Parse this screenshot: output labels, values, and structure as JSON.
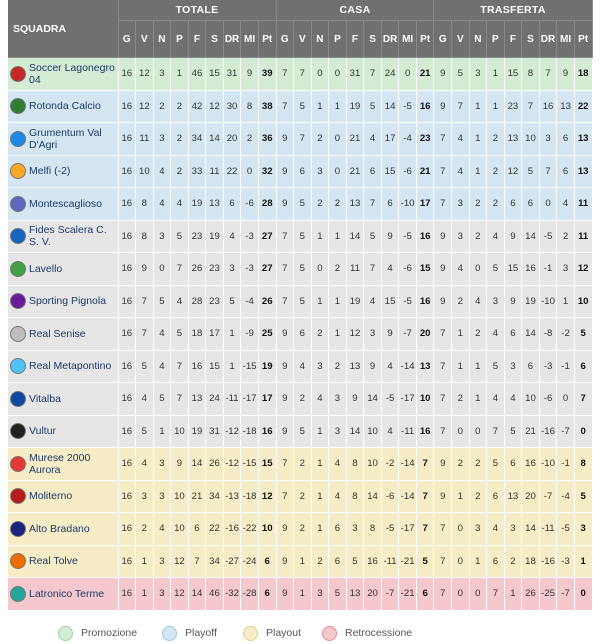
{
  "header": {
    "team_col": "SQUADRA",
    "groups": [
      "TOTALE",
      "CASA",
      "TRASFERTA"
    ],
    "sub_cols": [
      "G",
      "V",
      "N",
      "P",
      "F",
      "S",
      "DR",
      "MI",
      "Pt"
    ]
  },
  "colors": {
    "promozione": "#d4ecd4",
    "playoff": "#d4e6f2",
    "playout": "#f6ecc6",
    "retrocessione": "#f4c8cc"
  },
  "rows": [
    {
      "team": "Soccer Lagonegro 04",
      "zone": "promo",
      "logo": "#c62828",
      "tot": [
        "16",
        "12",
        "3",
        "1",
        "46",
        "15",
        "31",
        "9",
        "39"
      ],
      "casa": [
        "7",
        "7",
        "0",
        "0",
        "31",
        "7",
        "24",
        "0",
        "21"
      ],
      "tras": [
        "9",
        "5",
        "3",
        "1",
        "15",
        "8",
        "7",
        "9",
        "18"
      ]
    },
    {
      "team": "Rotonda Calcio",
      "zone": "playoff",
      "logo": "#2e7d32",
      "tot": [
        "16",
        "12",
        "2",
        "2",
        "42",
        "12",
        "30",
        "8",
        "38"
      ],
      "casa": [
        "7",
        "5",
        "1",
        "1",
        "19",
        "5",
        "14",
        "-5",
        "16"
      ],
      "tras": [
        "9",
        "7",
        "1",
        "1",
        "23",
        "7",
        "16",
        "13",
        "22"
      ]
    },
    {
      "team": "Grumentum Val D'Agri",
      "zone": "playoff",
      "logo": "#1e88e5",
      "tot": [
        "16",
        "11",
        "3",
        "2",
        "34",
        "14",
        "20",
        "2",
        "36"
      ],
      "casa": [
        "9",
        "7",
        "2",
        "0",
        "21",
        "4",
        "17",
        "-4",
        "23"
      ],
      "tras": [
        "7",
        "4",
        "1",
        "2",
        "13",
        "10",
        "3",
        "6",
        "13"
      ]
    },
    {
      "team": "Melfi (-2)",
      "zone": "playoff",
      "logo": "#f9a825",
      "tot": [
        "16",
        "10",
        "4",
        "2",
        "33",
        "11",
        "22",
        "0",
        "32"
      ],
      "casa": [
        "9",
        "6",
        "3",
        "0",
        "21",
        "6",
        "15",
        "-6",
        "21"
      ],
      "tras": [
        "7",
        "4",
        "1",
        "2",
        "12",
        "5",
        "7",
        "6",
        "13"
      ]
    },
    {
      "team": "Montescaglioso",
      "zone": "playoff",
      "logo": "#5c6bc0",
      "tot": [
        "16",
        "8",
        "4",
        "4",
        "19",
        "13",
        "6",
        "-6",
        "28"
      ],
      "casa": [
        "9",
        "5",
        "2",
        "2",
        "13",
        "7",
        "6",
        "-10",
        "17"
      ],
      "tras": [
        "7",
        "3",
        "2",
        "2",
        "6",
        "6",
        "0",
        "4",
        "11"
      ]
    },
    {
      "team": "Fides Scalera C. S. V.",
      "zone": "plain",
      "logo": "#1565c0",
      "tot": [
        "16",
        "8",
        "3",
        "5",
        "23",
        "19",
        "4",
        "-3",
        "27"
      ],
      "casa": [
        "7",
        "5",
        "1",
        "1",
        "14",
        "5",
        "9",
        "-5",
        "16"
      ],
      "tras": [
        "9",
        "3",
        "2",
        "4",
        "9",
        "14",
        "-5",
        "2",
        "11"
      ]
    },
    {
      "team": "Lavello",
      "zone": "plain",
      "logo": "#43a047",
      "tot": [
        "16",
        "9",
        "0",
        "7",
        "26",
        "23",
        "3",
        "-3",
        "27"
      ],
      "casa": [
        "7",
        "5",
        "0",
        "2",
        "11",
        "7",
        "4",
        "-6",
        "15"
      ],
      "tras": [
        "9",
        "4",
        "0",
        "5",
        "15",
        "16",
        "-1",
        "3",
        "12"
      ]
    },
    {
      "team": "Sporting Pignola",
      "zone": "plain",
      "logo": "#6a1b9a",
      "tot": [
        "16",
        "7",
        "5",
        "4",
        "28",
        "23",
        "5",
        "-4",
        "26"
      ],
      "casa": [
        "7",
        "5",
        "1",
        "1",
        "19",
        "4",
        "15",
        "-5",
        "16"
      ],
      "tras": [
        "9",
        "2",
        "4",
        "3",
        "9",
        "19",
        "-10",
        "1",
        "10"
      ]
    },
    {
      "team": "Real Senise",
      "zone": "plain",
      "logo": "#bdbdbd",
      "tot": [
        "16",
        "7",
        "4",
        "5",
        "18",
        "17",
        "1",
        "-9",
        "25"
      ],
      "casa": [
        "9",
        "6",
        "2",
        "1",
        "12",
        "3",
        "9",
        "-7",
        "20"
      ],
      "tras": [
        "7",
        "1",
        "2",
        "4",
        "6",
        "14",
        "-8",
        "-2",
        "5"
      ]
    },
    {
      "team": "Real Metapontino",
      "zone": "plain",
      "logo": "#4fc3f7",
      "tot": [
        "16",
        "5",
        "4",
        "7",
        "16",
        "15",
        "1",
        "-15",
        "19"
      ],
      "casa": [
        "9",
        "4",
        "3",
        "2",
        "13",
        "9",
        "4",
        "-14",
        "13"
      ],
      "tras": [
        "7",
        "1",
        "1",
        "5",
        "3",
        "6",
        "-3",
        "-1",
        "6"
      ]
    },
    {
      "team": "Vitalba",
      "zone": "plain",
      "logo": "#0d47a1",
      "tot": [
        "16",
        "4",
        "5",
        "7",
        "13",
        "24",
        "-11",
        "-17",
        "17"
      ],
      "casa": [
        "9",
        "2",
        "4",
        "3",
        "9",
        "14",
        "-5",
        "-17",
        "10"
      ],
      "tras": [
        "7",
        "2",
        "1",
        "4",
        "4",
        "10",
        "-6",
        "0",
        "7"
      ]
    },
    {
      "team": "Vultur",
      "zone": "plain",
      "logo": "#212121",
      "tot": [
        "16",
        "5",
        "1",
        "10",
        "19",
        "31",
        "-12",
        "-18",
        "16"
      ],
      "casa": [
        "9",
        "5",
        "1",
        "3",
        "14",
        "10",
        "4",
        "-11",
        "16"
      ],
      "tras": [
        "7",
        "0",
        "0",
        "7",
        "5",
        "21",
        "-16",
        "-7",
        "0"
      ]
    },
    {
      "team": "Murese 2000 Aurora",
      "zone": "playout",
      "logo": "#e53935",
      "tot": [
        "16",
        "4",
        "3",
        "9",
        "14",
        "26",
        "-12",
        "-15",
        "15"
      ],
      "casa": [
        "7",
        "2",
        "1",
        "4",
        "8",
        "10",
        "-2",
        "-14",
        "7"
      ],
      "tras": [
        "9",
        "2",
        "2",
        "5",
        "6",
        "16",
        "-10",
        "-1",
        "8"
      ]
    },
    {
      "team": "Moliterno",
      "zone": "playout",
      "logo": "#b71c1c",
      "tot": [
        "16",
        "3",
        "3",
        "10",
        "21",
        "34",
        "-13",
        "-18",
        "12"
      ],
      "casa": [
        "7",
        "2",
        "1",
        "4",
        "8",
        "14",
        "-6",
        "-14",
        "7"
      ],
      "tras": [
        "9",
        "1",
        "2",
        "6",
        "13",
        "20",
        "-7",
        "-4",
        "5"
      ]
    },
    {
      "team": "Alto Bradano",
      "zone": "playout",
      "logo": "#1a237e",
      "tot": [
        "16",
        "2",
        "4",
        "10",
        "6",
        "22",
        "-16",
        "-22",
        "10"
      ],
      "casa": [
        "9",
        "2",
        "1",
        "6",
        "3",
        "8",
        "-5",
        "-17",
        "7"
      ],
      "tras": [
        "7",
        "0",
        "3",
        "4",
        "3",
        "14",
        "-11",
        "-5",
        "3"
      ]
    },
    {
      "team": "Real Tolve",
      "zone": "playout",
      "logo": "#ef6c00",
      "tot": [
        "16",
        "1",
        "3",
        "12",
        "7",
        "34",
        "-27",
        "-24",
        "6"
      ],
      "casa": [
        "9",
        "1",
        "2",
        "6",
        "5",
        "16",
        "-11",
        "-21",
        "5"
      ],
      "tras": [
        "7",
        "0",
        "1",
        "6",
        "2",
        "18",
        "-16",
        "-3",
        "1"
      ]
    },
    {
      "team": "Latronico Terme",
      "zone": "retro",
      "logo": "#26a69a",
      "tot": [
        "16",
        "1",
        "3",
        "12",
        "14",
        "46",
        "-32",
        "-28",
        "6"
      ],
      "casa": [
        "9",
        "1",
        "3",
        "5",
        "13",
        "20",
        "-7",
        "-21",
        "6"
      ],
      "tras": [
        "7",
        "0",
        "0",
        "7",
        "1",
        "26",
        "-25",
        "-7",
        "0"
      ]
    }
  ],
  "legend": [
    {
      "label": "Promozione",
      "color": "#d4ecd4",
      "border": "#9ccf9c"
    },
    {
      "label": "Playoff",
      "color": "#d4e6f2",
      "border": "#9cc3df"
    },
    {
      "label": "Playout",
      "color": "#f6ecc6",
      "border": "#e2cf80"
    },
    {
      "label": "Retrocessione",
      "color": "#f4c8cc",
      "border": "#e08c94"
    }
  ]
}
